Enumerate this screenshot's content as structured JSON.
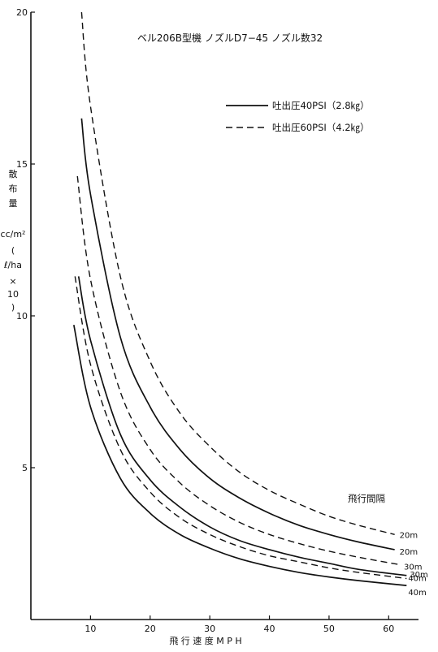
{
  "chart_data": {
    "type": "line",
    "title": "ベル206B型機 ノズルD7−45 ノズル数32",
    "xlabel": "飛 行 速 度 M P H",
    "ylabel": "散布量 cc/m² (ℓ/ha×10)",
    "ylabel_lines": [
      "散",
      "布",
      "量",
      "cc/m²",
      "(",
      "ℓ/ha",
      "×",
      "10",
      ")"
    ],
    "xlim": [
      0,
      65
    ],
    "ylim": [
      0,
      20
    ],
    "xticks": [
      10,
      20,
      30,
      40,
      50,
      60
    ],
    "yticks": [
      5,
      10,
      15,
      20
    ],
    "grid": false,
    "legend_placement": "top-right",
    "legend": [
      {
        "label": "吐出圧40PSI（2.8㎏）",
        "style": "solid"
      },
      {
        "label": "吐出圧60PSI（4.2㎏）",
        "style": "dashed"
      }
    ],
    "annotation": "飛行間隔",
    "series": [
      {
        "pressure": "60PSI",
        "style": "dashed",
        "end_label": "20m",
        "x": [
          8.5,
          10,
          15,
          20,
          25,
          30,
          35,
          40,
          45,
          50,
          55,
          61
        ],
        "y": [
          20.0,
          16.9,
          11.3,
          8.5,
          6.8,
          5.7,
          4.85,
          4.25,
          3.8,
          3.4,
          3.1,
          2.8
        ]
      },
      {
        "pressure": "40PSI",
        "style": "solid",
        "end_label": "20m",
        "x": [
          8.5,
          10,
          15,
          20,
          25,
          30,
          35,
          40,
          45,
          50,
          55,
          61
        ],
        "y": [
          16.5,
          14.0,
          9.3,
          7.0,
          5.6,
          4.65,
          4.0,
          3.5,
          3.1,
          2.8,
          2.55,
          2.3
        ]
      },
      {
        "pressure": "60PSI",
        "style": "dashed",
        "end_label": "30m",
        "x": [
          7.8,
          10,
          15,
          20,
          25,
          30,
          35,
          40,
          45,
          50,
          55,
          62
        ],
        "y": [
          14.6,
          11.2,
          7.5,
          5.6,
          4.5,
          3.75,
          3.2,
          2.8,
          2.5,
          2.25,
          2.05,
          1.8
        ]
      },
      {
        "pressure": "40PSI",
        "style": "solid",
        "end_label": "30m",
        "x": [
          8.0,
          10,
          15,
          20,
          25,
          30,
          35,
          40,
          45,
          50,
          55,
          63
        ],
        "y": [
          11.3,
          9.2,
          6.1,
          4.6,
          3.7,
          3.05,
          2.6,
          2.3,
          2.05,
          1.85,
          1.65,
          1.45
        ]
      },
      {
        "pressure": "60PSI",
        "style": "dashed",
        "end_label": "40m",
        "x": [
          7.4,
          10,
          15,
          20,
          25,
          30,
          35,
          40,
          45,
          50,
          55,
          63
        ],
        "y": [
          11.3,
          8.4,
          5.6,
          4.2,
          3.35,
          2.8,
          2.4,
          2.1,
          1.9,
          1.7,
          1.55,
          1.35
        ]
      },
      {
        "pressure": "40PSI",
        "style": "solid",
        "end_label": "40m",
        "x": [
          7.2,
          10,
          15,
          20,
          25,
          30,
          35,
          40,
          45,
          50,
          55,
          63
        ],
        "y": [
          9.7,
          7.0,
          4.65,
          3.5,
          2.8,
          2.35,
          2.0,
          1.75,
          1.55,
          1.4,
          1.28,
          1.12
        ]
      }
    ]
  }
}
